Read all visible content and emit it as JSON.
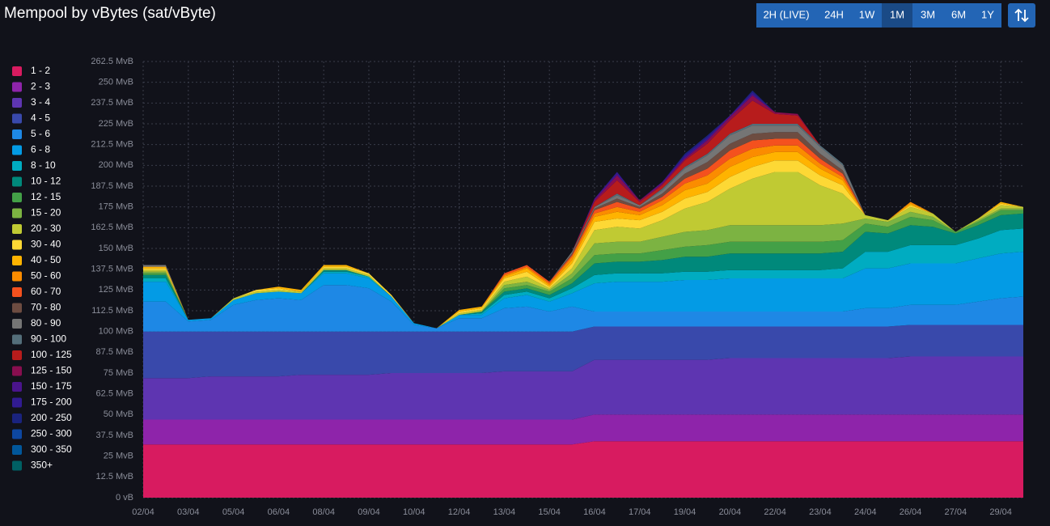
{
  "chart_data": {
    "type": "stacked_area",
    "title": "Mempool by vBytes (sat/vByte)",
    "controls": {
      "ranges": [
        "2H (LIVE)",
        "24H",
        "1W",
        "1M",
        "3M",
        "6M",
        "1Y"
      ],
      "selected": "1M"
    },
    "categories": [
      "02/04",
      null,
      "03/04",
      null,
      "05/04",
      null,
      "06/04",
      null,
      "08/04",
      null,
      "09/04",
      null,
      "10/04",
      null,
      "12/04",
      null,
      "13/04",
      null,
      "15/04",
      null,
      "16/04",
      null,
      "17/04",
      null,
      "19/04",
      null,
      "20/04",
      null,
      "22/04",
      null,
      "23/04",
      null,
      "24/04",
      null,
      "26/04",
      null,
      "27/04",
      null,
      "29/04",
      null
    ],
    "ylim": [
      0,
      262.5
    ],
    "yticks": [
      {
        "value": 0,
        "label": "0 vB"
      },
      {
        "value": 12.5,
        "label": "12.5 MvB"
      },
      {
        "value": 25,
        "label": "25 MvB"
      },
      {
        "value": 37.5,
        "label": "37.5 MvB"
      },
      {
        "value": 50,
        "label": "50 MvB"
      },
      {
        "value": 62.5,
        "label": "62.5 MvB"
      },
      {
        "value": 75,
        "label": "75 MvB"
      },
      {
        "value": 87.5,
        "label": "87.5 MvB"
      },
      {
        "value": 100,
        "label": "100 MvB"
      },
      {
        "value": 112.5,
        "label": "112.5 MvB"
      },
      {
        "value": 125,
        "label": "125 MvB"
      },
      {
        "value": 137.5,
        "label": "137.5 MvB"
      },
      {
        "value": 150,
        "label": "150 MvB"
      },
      {
        "value": 162.5,
        "label": "162.5 MvB"
      },
      {
        "value": 175,
        "label": "175 MvB"
      },
      {
        "value": 187.5,
        "label": "187.5 MvB"
      },
      {
        "value": 200,
        "label": "200 MvB"
      },
      {
        "value": 212.5,
        "label": "212.5 MvB"
      },
      {
        "value": 225,
        "label": "225 MvB"
      },
      {
        "value": 237.5,
        "label": "237.5 MvB"
      },
      {
        "value": 250,
        "label": "250 MvB"
      },
      {
        "value": 262.5,
        "label": "262.5 MvB"
      }
    ],
    "grid": true,
    "legend": "left",
    "series": [
      {
        "name": "1 - 2",
        "color": "#d81b60",
        "values": [
          32,
          32,
          32,
          32,
          32,
          32,
          32,
          32,
          32,
          32,
          32,
          32,
          32,
          32,
          32,
          32,
          32,
          32,
          32,
          32,
          34,
          34,
          34,
          34,
          34,
          34,
          34,
          34,
          34,
          34,
          34,
          34,
          34,
          34,
          34,
          34,
          34,
          34,
          34,
          34
        ]
      },
      {
        "name": "2 - 3",
        "color": "#8e24aa",
        "values": [
          15,
          15,
          15,
          15,
          15,
          15,
          15,
          15,
          15,
          15,
          15,
          15,
          15,
          15,
          15,
          15,
          15,
          15,
          15,
          15,
          16,
          16,
          16,
          16,
          16,
          16,
          16,
          16,
          16,
          16,
          16,
          16,
          16,
          16,
          16,
          16,
          16,
          16,
          16,
          16
        ]
      },
      {
        "name": "3 - 4",
        "color": "#5e35b1",
        "values": [
          25,
          25,
          25,
          26,
          26,
          26,
          26,
          27,
          27,
          27,
          27,
          28,
          28,
          28,
          28,
          28,
          29,
          29,
          29,
          29,
          33,
          33,
          33,
          33,
          33,
          33,
          34,
          34,
          34,
          34,
          34,
          34,
          34,
          34,
          35,
          35,
          35,
          35,
          35,
          35
        ]
      },
      {
        "name": "4 - 5",
        "color": "#3949ab",
        "values": [
          28,
          28,
          28,
          27,
          27,
          27,
          27,
          26,
          26,
          26,
          26,
          25,
          25,
          25,
          25,
          25,
          24,
          24,
          24,
          24,
          20,
          20,
          20,
          20,
          20,
          20,
          19,
          19,
          19,
          19,
          19,
          19,
          19,
          19,
          19,
          19,
          19,
          19,
          19,
          19
        ]
      },
      {
        "name": "5 - 6",
        "color": "#1e88e5",
        "values": [
          18,
          18,
          6,
          7,
          16,
          19,
          20,
          19,
          28,
          28,
          26,
          18,
          4,
          2,
          8,
          8,
          14,
          15,
          12,
          15,
          9,
          9,
          9,
          9,
          9,
          9,
          9,
          9,
          9,
          9,
          9,
          9,
          11,
          11,
          12,
          12,
          12,
          14,
          16,
          17
        ]
      },
      {
        "name": "6 - 8",
        "color": "#039be5",
        "values": [
          12,
          12,
          1,
          1,
          3,
          4,
          4,
          4,
          7,
          7,
          6,
          3,
          1,
          0,
          2,
          2,
          6,
          7,
          6,
          8,
          17,
          18,
          18,
          18,
          19,
          19,
          20,
          20,
          20,
          20,
          20,
          20,
          24,
          24,
          25,
          25,
          25,
          26,
          27,
          27
        ]
      },
      {
        "name": "8 - 10",
        "color": "#00acc1",
        "values": [
          2,
          2,
          0,
          0,
          0,
          0,
          0,
          0,
          1,
          1,
          1,
          0,
          0,
          0,
          0,
          1,
          2,
          2,
          2,
          3,
          5,
          5,
          5,
          5,
          5,
          5,
          5,
          5,
          5,
          5,
          5,
          6,
          10,
          10,
          11,
          11,
          11,
          12,
          14,
          14
        ]
      },
      {
        "name": "10 - 12",
        "color": "#00897b",
        "values": [
          2,
          2,
          0,
          0,
          0,
          0,
          0,
          0,
          1,
          1,
          0,
          0,
          0,
          0,
          0,
          1,
          2,
          2,
          2,
          3,
          7,
          7,
          7,
          8,
          9,
          9,
          10,
          10,
          10,
          10,
          10,
          10,
          12,
          11,
          12,
          11,
          7,
          8,
          9,
          9
        ]
      },
      {
        "name": "12 - 15",
        "color": "#43a047",
        "values": [
          1,
          1,
          0,
          0,
          0,
          0,
          0,
          0,
          0,
          0,
          0,
          0,
          0,
          0,
          0,
          0,
          2,
          2,
          2,
          3,
          5,
          5,
          5,
          6,
          6,
          7,
          7,
          7,
          7,
          7,
          7,
          7,
          5,
          4,
          5,
          4,
          1,
          2,
          3,
          2
        ]
      },
      {
        "name": "15 - 20",
        "color": "#7cb342",
        "values": [
          1,
          1,
          0,
          0,
          0,
          0,
          0,
          0,
          0,
          0,
          0,
          0,
          0,
          0,
          0,
          0,
          2,
          2,
          1,
          3,
          7,
          7,
          7,
          8,
          9,
          9,
          10,
          10,
          10,
          10,
          10,
          10,
          3,
          3,
          3,
          2,
          0,
          1,
          1,
          1
        ]
      },
      {
        "name": "20 - 30",
        "color": "#c0ca33",
        "values": [
          1,
          1,
          0,
          0,
          1,
          1,
          1,
          1,
          1,
          1,
          1,
          0,
          0,
          0,
          1,
          1,
          2,
          3,
          1,
          3,
          8,
          9,
          8,
          10,
          14,
          17,
          22,
          28,
          32,
          32,
          24,
          18,
          2,
          1,
          3,
          2,
          0,
          1,
          2,
          1
        ]
      },
      {
        "name": "30 - 40",
        "color": "#fdd835",
        "values": [
          1,
          1,
          0,
          0,
          0,
          1,
          1,
          0,
          1,
          1,
          1,
          1,
          0,
          0,
          1,
          1,
          2,
          3,
          1,
          3,
          5,
          5,
          5,
          5,
          6,
          6,
          7,
          7,
          7,
          7,
          6,
          5,
          0,
          0,
          1,
          0,
          0,
          0,
          1,
          0
        ]
      },
      {
        "name": "40 - 50",
        "color": "#ffb300",
        "values": [
          1,
          1,
          0,
          0,
          0,
          0,
          1,
          1,
          1,
          1,
          0,
          0,
          0,
          0,
          1,
          1,
          1,
          2,
          1,
          2,
          3,
          4,
          3,
          4,
          5,
          5,
          6,
          6,
          5,
          5,
          4,
          3,
          0,
          0,
          1,
          0,
          0,
          0,
          1,
          0
        ]
      },
      {
        "name": "50 - 60",
        "color": "#fb8c00",
        "values": [
          0,
          0,
          0,
          0,
          0,
          0,
          0,
          0,
          0,
          0,
          0,
          0,
          0,
          0,
          0,
          0,
          1,
          1,
          1,
          2,
          2,
          3,
          2,
          3,
          4,
          5,
          5,
          5,
          4,
          4,
          3,
          2,
          0,
          0,
          1,
          0,
          0,
          0,
          0,
          0
        ]
      },
      {
        "name": "60 - 70",
        "color": "#f4511e",
        "values": [
          0,
          0,
          0,
          0,
          0,
          0,
          0,
          0,
          0,
          0,
          0,
          0,
          0,
          0,
          0,
          0,
          1,
          1,
          1,
          1,
          2,
          3,
          2,
          2,
          3,
          4,
          5,
          5,
          4,
          4,
          3,
          2,
          0,
          0,
          0,
          0,
          0,
          0,
          0,
          0
        ]
      },
      {
        "name": "70 - 80",
        "color": "#6d4c41",
        "values": [
          0,
          0,
          0,
          0,
          0,
          0,
          0,
          0,
          0,
          0,
          0,
          0,
          0,
          0,
          0,
          0,
          0,
          0,
          0,
          1,
          1,
          2,
          1,
          2,
          3,
          4,
          4,
          4,
          4,
          4,
          3,
          2,
          0,
          0,
          0,
          0,
          0,
          0,
          0,
          0
        ]
      },
      {
        "name": "80 - 90",
        "color": "#757575",
        "values": [
          1,
          1,
          0,
          0,
          0,
          0,
          0,
          0,
          0,
          0,
          0,
          0,
          0,
          0,
          0,
          0,
          0,
          0,
          0,
          1,
          1,
          2,
          1,
          2,
          3,
          4,
          5,
          5,
          4,
          4,
          4,
          3,
          0,
          0,
          0,
          0,
          0,
          0,
          0,
          0
        ]
      },
      {
        "name": "90 - 100",
        "color": "#546e7a",
        "values": [
          0,
          0,
          0,
          0,
          0,
          0,
          0,
          0,
          0,
          0,
          0,
          0,
          0,
          0,
          0,
          0,
          0,
          0,
          0,
          0,
          0,
          1,
          0,
          1,
          1,
          1,
          1,
          1,
          1,
          1,
          1,
          1,
          0,
          0,
          0,
          0,
          0,
          0,
          0,
          0
        ]
      },
      {
        "name": "100 - 125",
        "color": "#b71c1c",
        "values": [
          0,
          0,
          0,
          0,
          0,
          0,
          0,
          0,
          0,
          0,
          0,
          0,
          0,
          0,
          0,
          0,
          0,
          0,
          0,
          0,
          3,
          8,
          2,
          2,
          4,
          6,
          8,
          14,
          6,
          5,
          0,
          0,
          0,
          0,
          0,
          0,
          0,
          0,
          0,
          0
        ]
      },
      {
        "name": "125 - 150",
        "color": "#880e4f",
        "values": [
          0,
          0,
          0,
          0,
          0,
          0,
          0,
          0,
          0,
          0,
          0,
          0,
          0,
          0,
          0,
          0,
          0,
          0,
          0,
          0,
          1,
          3,
          1,
          1,
          1,
          2,
          2,
          3,
          1,
          1,
          0,
          0,
          0,
          0,
          0,
          0,
          0,
          0,
          0,
          0
        ]
      },
      {
        "name": "150 - 175",
        "color": "#4a148c",
        "values": [
          0,
          0,
          0,
          0,
          0,
          0,
          0,
          0,
          0,
          0,
          0,
          0,
          0,
          0,
          0,
          0,
          0,
          0,
          0,
          0,
          1,
          1,
          0,
          1,
          1,
          1,
          1,
          1,
          0,
          0,
          0,
          0,
          0,
          0,
          0,
          0,
          0,
          0,
          0,
          0
        ]
      },
      {
        "name": "175 - 200",
        "color": "#311b92",
        "values": [
          0,
          0,
          0,
          0,
          0,
          0,
          0,
          0,
          0,
          0,
          0,
          0,
          0,
          0,
          0,
          0,
          0,
          0,
          0,
          0,
          0,
          1,
          0,
          0,
          1,
          1,
          0,
          1,
          0,
          0,
          0,
          0,
          0,
          0,
          0,
          0,
          0,
          0,
          0,
          0
        ]
      },
      {
        "name": "200 - 250",
        "color": "#1a237e",
        "values": [
          0,
          0,
          0,
          0,
          0,
          0,
          0,
          0,
          0,
          0,
          0,
          0,
          0,
          0,
          0,
          0,
          0,
          0,
          0,
          0,
          0,
          0,
          0,
          0,
          1,
          1,
          0,
          1,
          0,
          0,
          0,
          0,
          0,
          0,
          0,
          0,
          0,
          0,
          0,
          0
        ]
      },
      {
        "name": "250 - 300",
        "color": "#0d47a1",
        "values": [
          0,
          0,
          0,
          0,
          0,
          0,
          0,
          0,
          0,
          0,
          0,
          0,
          0,
          0,
          0,
          0,
          0,
          0,
          0,
          0,
          0,
          0,
          0,
          0,
          0,
          0,
          0,
          0,
          0,
          0,
          0,
          0,
          0,
          0,
          0,
          0,
          0,
          0,
          0,
          0
        ]
      },
      {
        "name": "300 - 350",
        "color": "#01579b",
        "values": [
          0,
          0,
          0,
          0,
          0,
          0,
          0,
          0,
          0,
          0,
          0,
          0,
          0,
          0,
          0,
          0,
          0,
          0,
          0,
          0,
          0,
          0,
          0,
          0,
          0,
          0,
          0,
          0,
          0,
          0,
          0,
          0,
          0,
          0,
          0,
          0,
          0,
          0,
          0,
          0
        ]
      },
      {
        "name": "350+",
        "color": "#006064",
        "values": [
          0,
          0,
          0,
          0,
          0,
          0,
          0,
          0,
          0,
          0,
          0,
          0,
          0,
          0,
          0,
          0,
          0,
          0,
          0,
          0,
          0,
          0,
          0,
          0,
          0,
          0,
          0,
          0,
          0,
          0,
          0,
          0,
          0,
          0,
          0,
          0,
          0,
          0,
          0,
          0
        ]
      }
    ]
  }
}
